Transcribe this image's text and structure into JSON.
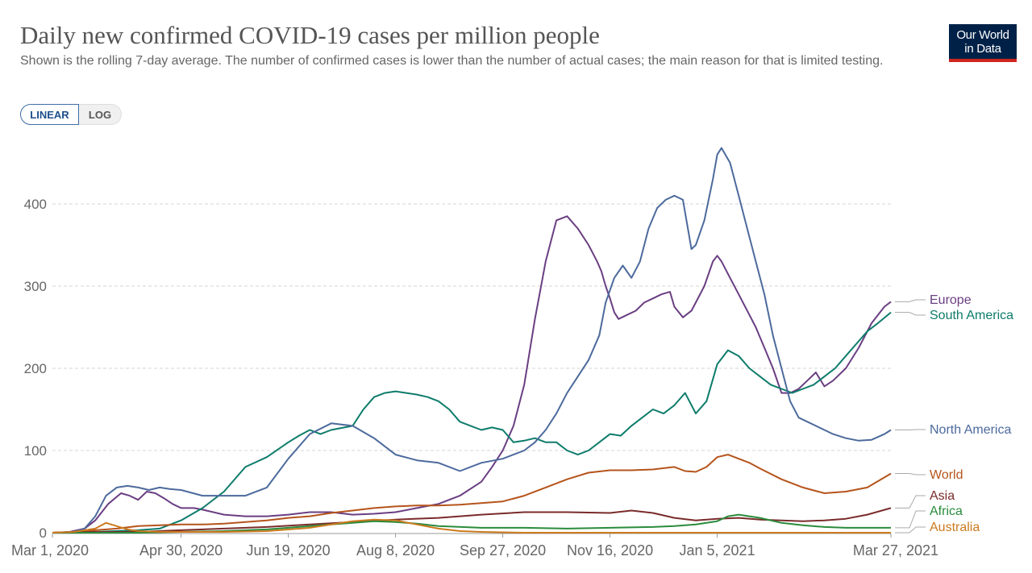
{
  "header": {
    "title": "Daily new confirmed COVID-19 cases per million people",
    "subtitle": "Shown is the rolling 7-day average. The number of confirmed cases is lower than the number of actual cases; the main reason for that is limited testing."
  },
  "logo": {
    "line1": "Our World",
    "line2": "in Data"
  },
  "scale_toggle": {
    "linear": "LINEAR",
    "log": "LOG",
    "selected": "LINEAR"
  },
  "chart_data": {
    "type": "line",
    "title": "Daily new confirmed COVID-19 cases per million people",
    "xlabel": "",
    "ylabel": "",
    "ylim": [
      0,
      480
    ],
    "yticks": [
      0,
      100,
      200,
      300,
      400
    ],
    "x_range_days": [
      0,
      391
    ],
    "xticks": [
      {
        "day": 0,
        "label": "Mar 1, 2020"
      },
      {
        "day": 60,
        "label": "Apr 30, 2020"
      },
      {
        "day": 110,
        "label": "Jun 19, 2020"
      },
      {
        "day": 160,
        "label": "Aug 8, 2020"
      },
      {
        "day": 210,
        "label": "Sep 27, 2020"
      },
      {
        "day": 260,
        "label": "Nov 16, 2020"
      },
      {
        "day": 310,
        "label": "Jan 5, 2021"
      },
      {
        "day": 391,
        "label": "Mar 27, 2021"
      }
    ],
    "series": [
      {
        "name": "Europe",
        "color": "#6a3e82",
        "x": [
          0,
          8,
          15,
          20,
          26,
          32,
          36,
          40,
          44,
          48,
          52,
          56,
          60,
          66,
          70,
          75,
          80,
          90,
          100,
          110,
          120,
          130,
          140,
          150,
          160,
          170,
          180,
          190,
          200,
          205,
          210,
          215,
          220,
          225,
          230,
          235,
          240,
          245,
          250,
          252,
          254,
          256,
          258,
          260,
          262,
          264,
          268,
          272,
          276,
          280,
          284,
          288,
          290,
          294,
          298,
          300,
          304,
          308,
          310,
          312,
          316,
          320,
          324,
          328,
          332,
          336,
          340,
          344,
          348,
          352,
          356,
          360,
          364,
          370,
          376,
          382,
          388,
          391
        ],
        "y": [
          0,
          1,
          5,
          15,
          35,
          48,
          45,
          40,
          50,
          48,
          42,
          35,
          30,
          30,
          28,
          25,
          22,
          20,
          20,
          22,
          25,
          25,
          22,
          23,
          25,
          30,
          35,
          45,
          62,
          80,
          100,
          130,
          180,
          260,
          330,
          380,
          385,
          370,
          350,
          340,
          330,
          318,
          300,
          285,
          268,
          260,
          265,
          270,
          280,
          285,
          290,
          293,
          275,
          262,
          270,
          280,
          300,
          330,
          337,
          330,
          310,
          290,
          270,
          250,
          225,
          200,
          170,
          170,
          175,
          185,
          195,
          178,
          185,
          200,
          225,
          255,
          275,
          281
        ]
      },
      {
        "name": "South America",
        "color": "#0e7c6b",
        "x": [
          0,
          20,
          40,
          50,
          60,
          70,
          80,
          90,
          100,
          110,
          115,
          120,
          125,
          130,
          140,
          145,
          150,
          155,
          160,
          165,
          170,
          175,
          180,
          185,
          190,
          195,
          200,
          205,
          210,
          215,
          220,
          225,
          230,
          235,
          240,
          245,
          250,
          255,
          260,
          265,
          270,
          275,
          280,
          285,
          290,
          295,
          300,
          305,
          310,
          315,
          320,
          325,
          330,
          335,
          340,
          345,
          350,
          355,
          360,
          365,
          370,
          375,
          380,
          385,
          391
        ],
        "y": [
          0,
          1,
          3,
          5,
          15,
          30,
          50,
          80,
          92,
          110,
          118,
          125,
          120,
          125,
          130,
          150,
          165,
          170,
          172,
          170,
          168,
          165,
          160,
          150,
          135,
          130,
          125,
          128,
          125,
          110,
          112,
          115,
          110,
          110,
          100,
          95,
          100,
          110,
          120,
          118,
          130,
          140,
          150,
          145,
          155,
          170,
          145,
          160,
          205,
          222,
          215,
          200,
          190,
          180,
          175,
          170,
          175,
          180,
          190,
          200,
          215,
          230,
          245,
          255,
          268
        ]
      },
      {
        "name": "North America",
        "color": "#4c6a9c",
        "x": [
          0,
          10,
          15,
          20,
          25,
          30,
          35,
          40,
          45,
          50,
          55,
          60,
          70,
          80,
          90,
          100,
          110,
          120,
          130,
          140,
          150,
          160,
          170,
          180,
          190,
          200,
          210,
          215,
          220,
          225,
          230,
          235,
          240,
          245,
          250,
          255,
          258,
          262,
          266,
          270,
          274,
          278,
          282,
          286,
          290,
          294,
          298,
          300,
          304,
          308,
          310,
          312,
          316,
          320,
          324,
          328,
          332,
          336,
          340,
          344,
          348,
          352,
          356,
          360,
          364,
          370,
          376,
          382,
          388,
          391
        ],
        "y": [
          0,
          1,
          5,
          20,
          45,
          55,
          57,
          55,
          52,
          55,
          53,
          52,
          45,
          45,
          45,
          55,
          90,
          120,
          133,
          130,
          115,
          95,
          88,
          85,
          75,
          85,
          90,
          95,
          100,
          110,
          125,
          145,
          170,
          190,
          210,
          240,
          280,
          310,
          325,
          310,
          330,
          370,
          395,
          405,
          410,
          405,
          345,
          350,
          380,
          430,
          460,
          468,
          450,
          410,
          370,
          330,
          290,
          240,
          200,
          160,
          140,
          135,
          130,
          125,
          120,
          115,
          112,
          113,
          120,
          125
        ]
      },
      {
        "name": "World",
        "color": "#b5541b",
        "x": [
          0,
          10,
          20,
          30,
          40,
          50,
          60,
          70,
          80,
          90,
          100,
          110,
          120,
          130,
          140,
          150,
          160,
          170,
          180,
          190,
          200,
          210,
          220,
          230,
          240,
          250,
          260,
          270,
          280,
          290,
          295,
          300,
          305,
          310,
          315,
          320,
          325,
          330,
          340,
          350,
          360,
          370,
          380,
          391
        ],
        "y": [
          0,
          1,
          3,
          5,
          8,
          9,
          10,
          10,
          11,
          13,
          15,
          18,
          20,
          24,
          27,
          30,
          32,
          33,
          33,
          34,
          36,
          38,
          45,
          55,
          65,
          73,
          76,
          76,
          77,
          80,
          75,
          74,
          80,
          92,
          95,
          90,
          85,
          78,
          65,
          55,
          48,
          50,
          55,
          72
        ]
      },
      {
        "name": "Asia",
        "color": "#7a2b2b",
        "x": [
          0,
          20,
          40,
          60,
          80,
          100,
          120,
          140,
          160,
          180,
          200,
          220,
          240,
          260,
          270,
          280,
          290,
          300,
          310,
          320,
          330,
          340,
          350,
          360,
          370,
          380,
          391
        ],
        "y": [
          0,
          1,
          1,
          3,
          5,
          7,
          10,
          13,
          16,
          18,
          22,
          25,
          25,
          24,
          27,
          24,
          18,
          15,
          17,
          18,
          16,
          15,
          14,
          15,
          17,
          22,
          30
        ]
      },
      {
        "name": "Africa",
        "color": "#2b8b3c",
        "x": [
          0,
          20,
          40,
          60,
          80,
          100,
          120,
          140,
          150,
          160,
          170,
          180,
          200,
          220,
          240,
          260,
          280,
          290,
          300,
          310,
          315,
          320,
          330,
          340,
          350,
          360,
          370,
          380,
          391
        ],
        "y": [
          0,
          0,
          0,
          1,
          2,
          4,
          8,
          12,
          14,
          13,
          11,
          8,
          6,
          6,
          5,
          6,
          7,
          8,
          10,
          14,
          20,
          22,
          18,
          12,
          9,
          7,
          6,
          6,
          6
        ]
      },
      {
        "name": "Australia",
        "color": "#cc7a1e",
        "x": [
          0,
          10,
          20,
          25,
          30,
          35,
          40,
          50,
          60,
          80,
          100,
          120,
          130,
          140,
          150,
          160,
          170,
          180,
          190,
          200,
          220,
          240,
          260,
          280,
          300,
          320,
          340,
          360,
          391
        ],
        "y": [
          0,
          1,
          5,
          12,
          8,
          4,
          2,
          1,
          1,
          1,
          2,
          6,
          10,
          14,
          16,
          15,
          10,
          5,
          2,
          1,
          0,
          0,
          0,
          0,
          0,
          0,
          0,
          0,
          0
        ]
      }
    ],
    "labels": [
      {
        "series": "Europe",
        "text": "Europe",
        "color": "#6a3e82"
      },
      {
        "series": "South America",
        "text": "South America",
        "color": "#0e7c6b"
      },
      {
        "series": "North America",
        "text": "North America",
        "color": "#4c6a9c"
      },
      {
        "series": "World",
        "text": "World",
        "color": "#b5541b"
      },
      {
        "series": "Asia",
        "text": "Asia",
        "color": "#7a2b2b"
      },
      {
        "series": "Africa",
        "text": "Africa",
        "color": "#2b8b3c"
      },
      {
        "series": "Australia",
        "text": "Australia",
        "color": "#cc7a1e"
      }
    ]
  }
}
